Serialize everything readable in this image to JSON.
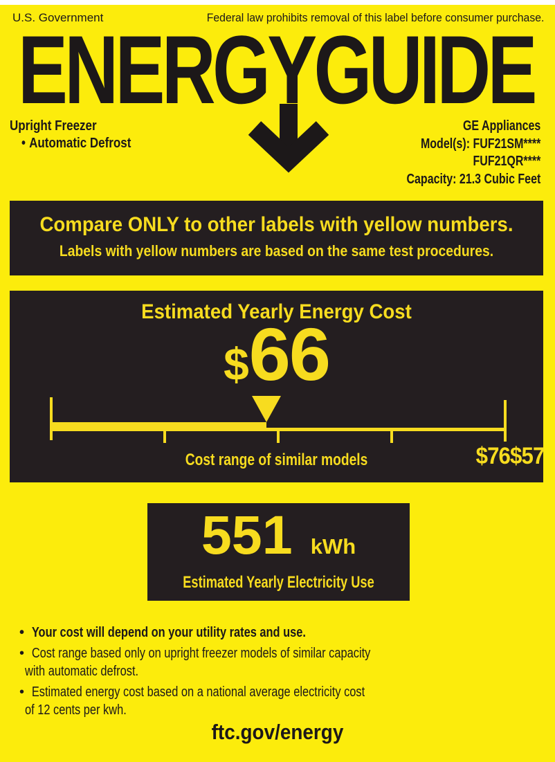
{
  "colors": {
    "background_yellow": "#fcec0c",
    "accent_yellow": "#f7dc1f",
    "box_black": "#241e20",
    "text_black": "#1c1819",
    "white": "#ffffff"
  },
  "bullet_char": "•",
  "header": {
    "gov_label": "U.S. Government",
    "federal_notice": "Federal law prohibits removal of this label before consumer purchase.",
    "logo_text": "ENERGYGUIDE",
    "logo_arrow_icon": "down-arrow"
  },
  "product": {
    "type": "Upright Freezer",
    "feature": "Automatic Defrost",
    "brand": "GE Appliances",
    "models_line1": "Model(s): FUF21SM****",
    "models_line2": "FUF21QR****",
    "capacity": "Capacity: 21.3 Cubic Feet"
  },
  "compare_banner": {
    "line1": "Compare ONLY to other labels with yellow numbers.",
    "line2": "Labels with yellow numbers are based on the same test procedures."
  },
  "cost_section": {
    "title": "Estimated Yearly Energy Cost",
    "currency_symbol": "$",
    "value": "66",
    "range_label_high": "$76",
    "range_label_low": "$57",
    "caption": "Cost range of similar models",
    "scale": {
      "min": 57,
      "max": 76,
      "value": 66
    }
  },
  "usage_section": {
    "value": "551",
    "unit": "kWh",
    "caption": "Estimated Yearly Electricity Use"
  },
  "notes": [
    {
      "text": "Your cost will depend on your utility rates and use.",
      "emphasis": "bold"
    },
    {
      "text": "Cost range based only on upright freezer models of similar capacity with automatic defrost.",
      "emphasis": "regular"
    },
    {
      "text": "Estimated energy cost based on a national average electricity cost of 12 cents per kwh.",
      "emphasis": "regular"
    }
  ],
  "footer": {
    "url": "ftc.gov/energy"
  }
}
